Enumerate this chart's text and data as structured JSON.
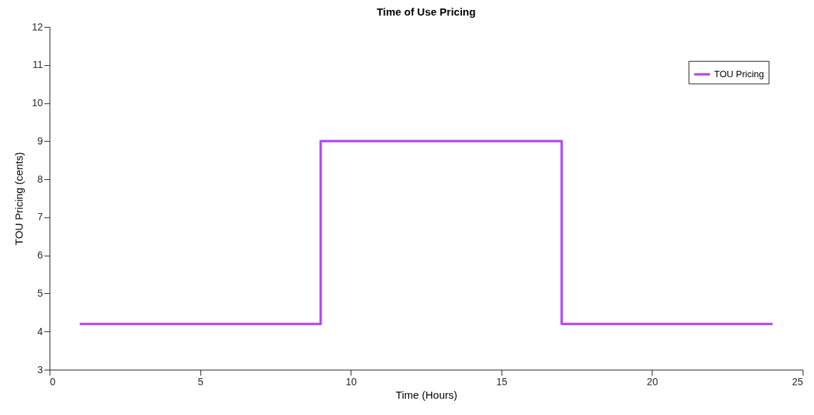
{
  "chart_data": {
    "type": "step",
    "title": "Time of Use Pricing",
    "xlabel": "Time (Hours)",
    "ylabel": "TOU Pricing (cents)",
    "x": [
      1,
      9,
      17,
      24
    ],
    "series": [
      {
        "name": "TOU Pricing",
        "color": "#b34df2",
        "values": [
          4.2,
          9,
          4.2,
          4.2
        ]
      }
    ],
    "xlim": [
      0,
      25
    ],
    "xticks": [
      0,
      5,
      10,
      15,
      20,
      25
    ],
    "ylim": [
      3,
      12
    ],
    "yticks": [
      3,
      4,
      5,
      6,
      7,
      8,
      9,
      10,
      11,
      12
    ],
    "grid": false,
    "legend": "top right",
    "marker": "none",
    "line_style": "solid"
  }
}
